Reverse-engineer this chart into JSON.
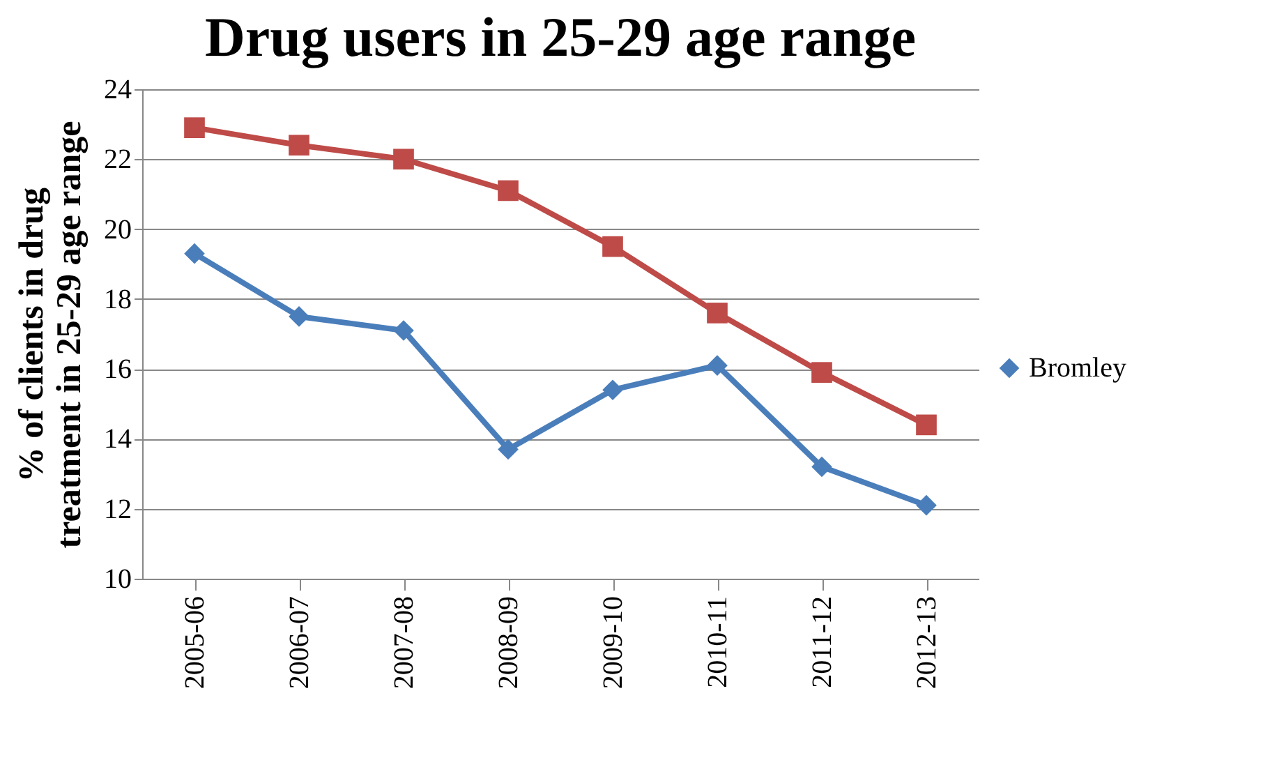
{
  "chart_data": {
    "type": "line",
    "title": "Drug users in 25-29 age range",
    "ylabel": "% of clients  in drug\ntreatment in 25-29 age range",
    "categories": [
      "2005-06",
      "2006-07",
      "2007-08",
      "2008-09",
      "2009-10",
      "2010-11",
      "2011-12",
      "2012-13"
    ],
    "series": [
      {
        "name": "Bromley",
        "color": "#4a7ebb",
        "marker": "diamond",
        "values": [
          19.3,
          17.5,
          17.1,
          13.7,
          15.4,
          16.1,
          13.2,
          12.1
        ]
      },
      {
        "color": "#be4b48",
        "marker": "square",
        "values": [
          22.9,
          22.4,
          22.0,
          21.1,
          19.5,
          17.6,
          15.9,
          14.4
        ]
      }
    ],
    "ylim": [
      10,
      24
    ],
    "yticks": [
      10,
      12,
      14,
      16,
      18,
      20,
      22,
      24
    ],
    "grid": "y",
    "legend": "right"
  }
}
